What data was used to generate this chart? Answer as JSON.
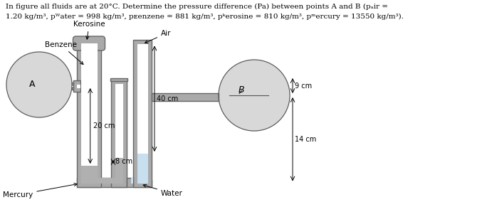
{
  "bg_color": "#ffffff",
  "pipe_color": "#aaaaaa",
  "pipe_ec": "#666666",
  "mercury_fill": "#b0b0b0",
  "water_fill": "#c8dff0",
  "white_fill": "#ffffff",
  "kerosine_fill": "#ffffff",
  "circle_fill": "#d8d8d8",
  "text_color": "#000000",
  "header_line1": "In figure all fluids are at 20°C. Determine the pressure difference (Pa) between points A and B (ρair =",
  "header_line2": "1.20 kg/m³, ρwater = 998 kg/m³, ρbenzene = 881 kg/m³, ρkerosine = 810 kg/m³, ρmercury = 13550 kg/m³).",
  "label_kerosine": "Kerosine",
  "label_benzene": "Benzene",
  "label_air": "Air",
  "label_mercury": "Mercury",
  "label_water": "Water",
  "label_A": "A",
  "label_B": "B",
  "dim_20cm": "20 cm",
  "dim_8cm": "8 cm",
  "dim_40cm": "40 cm",
  "dim_9cm": "9 cm",
  "dim_14cm": "14 cm",
  "figw": 6.91,
  "figh": 2.91,
  "dpi": 100
}
